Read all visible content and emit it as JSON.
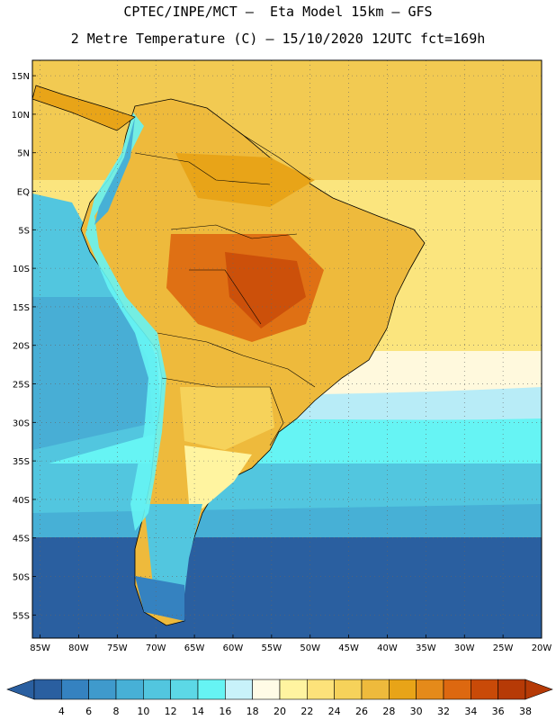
{
  "header": {
    "line1": "CPTEC/INPE/MCT –  Eta Model 15km – GFS",
    "line2": "2 Metre Temperature (C) – 15/10/2020 12UTC fct=169h"
  },
  "map": {
    "region": "South America",
    "lon_range": [
      -86,
      -20
    ],
    "lat_range": [
      -58,
      17
    ],
    "lat_ticks": [
      {
        "value": 15,
        "label": "15N"
      },
      {
        "value": 10,
        "label": "10N"
      },
      {
        "value": 5,
        "label": "5N"
      },
      {
        "value": 0,
        "label": "EQ"
      },
      {
        "value": -5,
        "label": "5S"
      },
      {
        "value": -10,
        "label": "10S"
      },
      {
        "value": -15,
        "label": "15S"
      },
      {
        "value": -20,
        "label": "20S"
      },
      {
        "value": -25,
        "label": "25S"
      },
      {
        "value": -30,
        "label": "30S"
      },
      {
        "value": -35,
        "label": "35S"
      },
      {
        "value": -40,
        "label": "40S"
      },
      {
        "value": -45,
        "label": "45S"
      },
      {
        "value": -50,
        "label": "50S"
      },
      {
        "value": -55,
        "label": "55S"
      }
    ],
    "lon_ticks": [
      {
        "value": -85,
        "label": "85W"
      },
      {
        "value": -80,
        "label": "80W"
      },
      {
        "value": -75,
        "label": "75W"
      },
      {
        "value": -70,
        "label": "70W"
      },
      {
        "value": -65,
        "label": "65W"
      },
      {
        "value": -60,
        "label": "60W"
      },
      {
        "value": -55,
        "label": "55W"
      },
      {
        "value": -50,
        "label": "50W"
      },
      {
        "value": -45,
        "label": "45W"
      },
      {
        "value": -40,
        "label": "40W"
      },
      {
        "value": -35,
        "label": "35W"
      },
      {
        "value": -30,
        "label": "30W"
      },
      {
        "value": -25,
        "label": "25W"
      },
      {
        "value": -20,
        "label": "20W"
      }
    ],
    "grid": true,
    "grid_style": "dotted"
  },
  "colorbar": {
    "labels": [
      "4",
      "6",
      "8",
      "10",
      "12",
      "14",
      "16",
      "18",
      "20",
      "22",
      "24",
      "26",
      "28",
      "30",
      "32",
      "34",
      "36",
      "38"
    ],
    "colors": [
      "#2a5fa0",
      "#3582c0",
      "#3f9acc",
      "#47b0d6",
      "#52c6df",
      "#5cd8e6",
      "#66f4f4",
      "#c8f2fa",
      "#fffbe6",
      "#fff4a0",
      "#fde27a",
      "#f6d25a",
      "#eeba3c",
      "#e8a418",
      "#e58a1a",
      "#dd6810",
      "#c94a08",
      "#b63a06"
    ],
    "arrow_low": "#2a5fa0",
    "arrow_high": "#b63a06"
  }
}
